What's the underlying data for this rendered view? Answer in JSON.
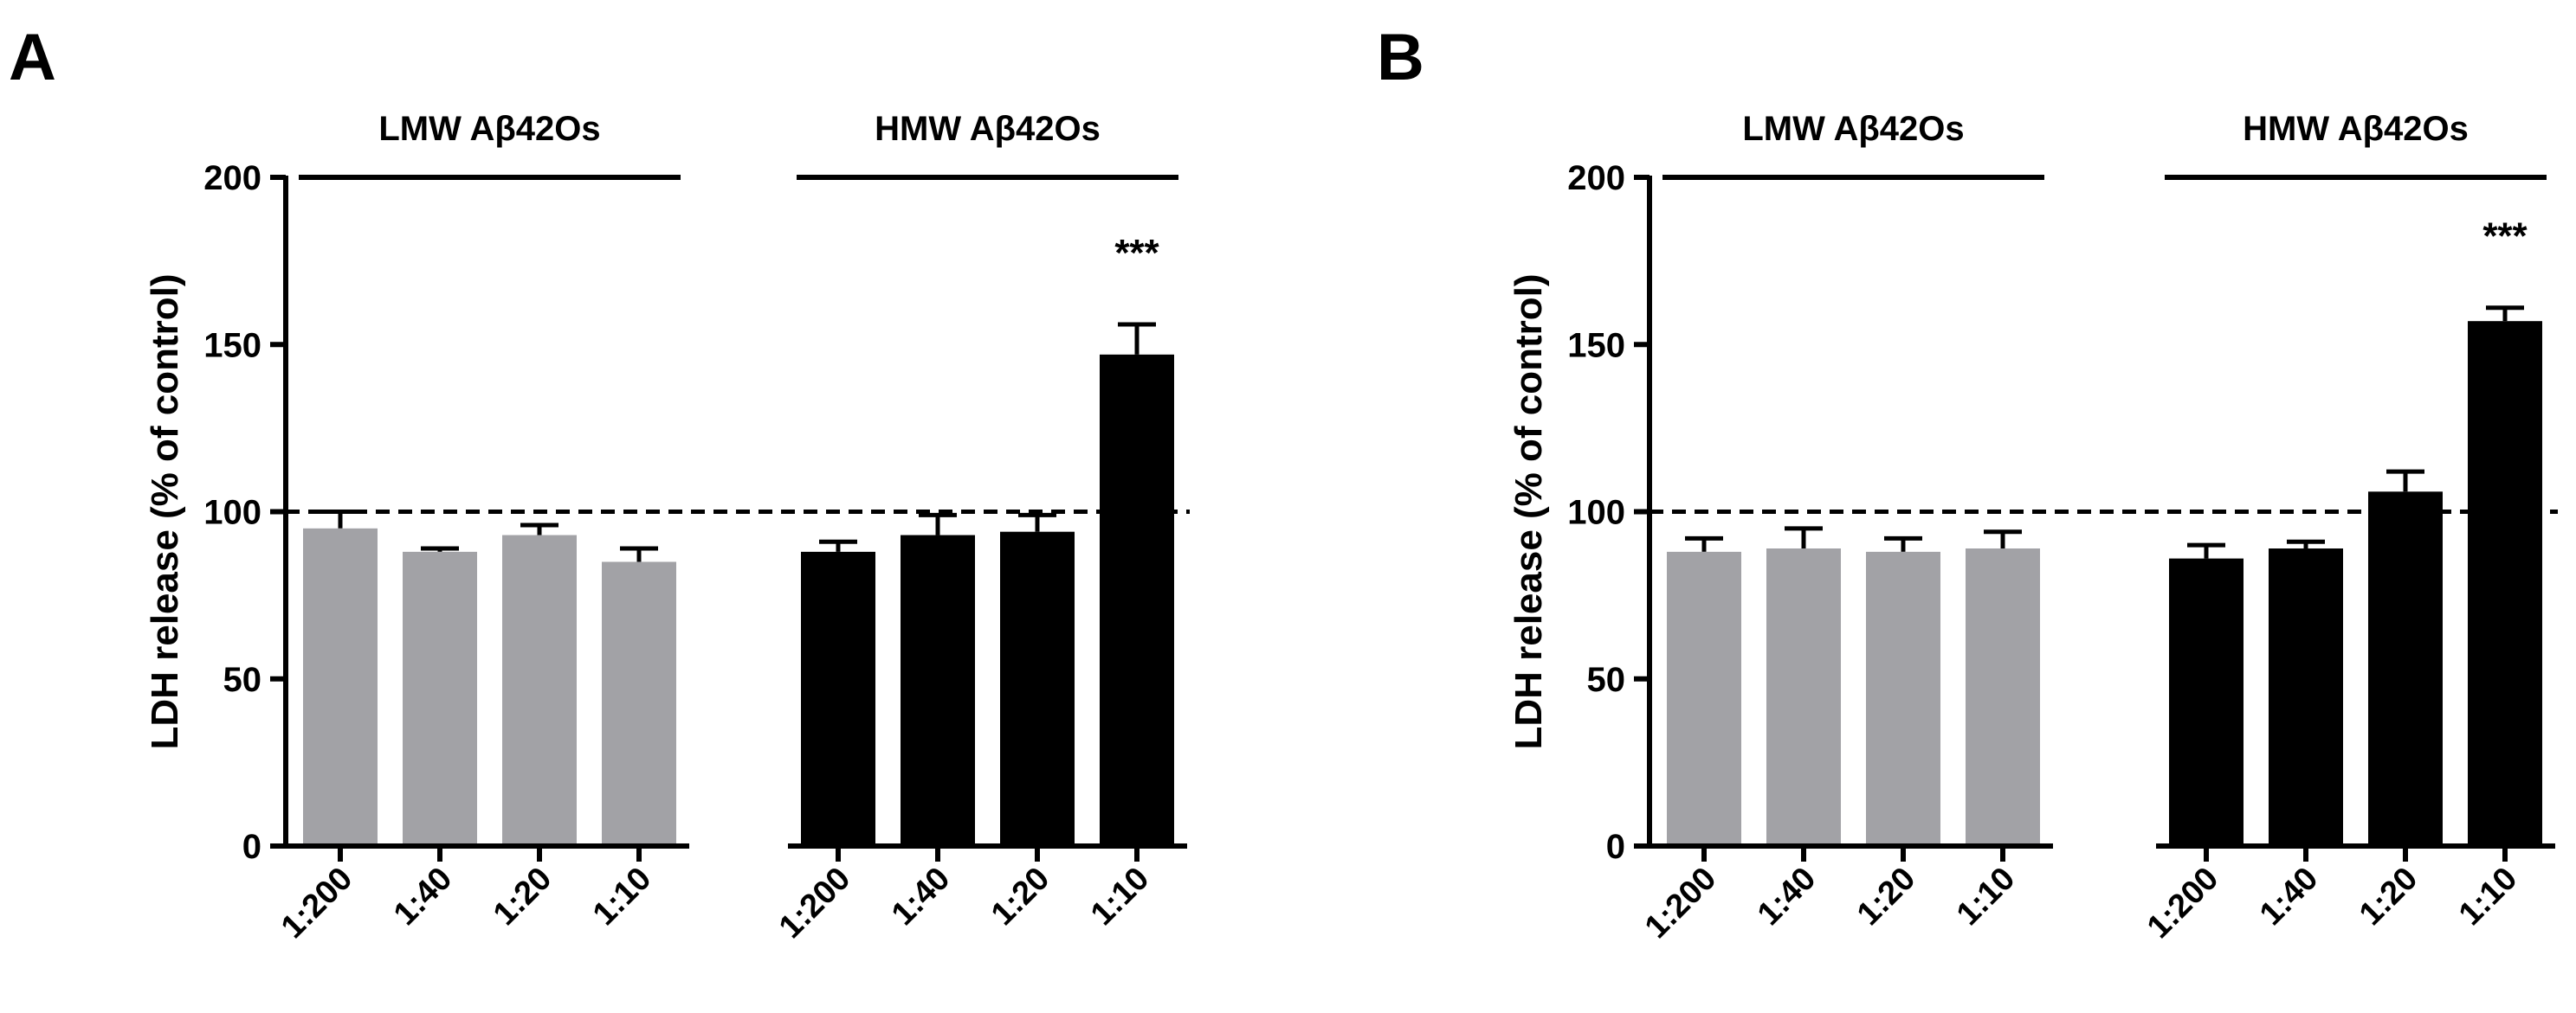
{
  "chart_data": [
    {
      "panel": "A",
      "type": "bar",
      "ylabel": "LDH release (% of control)",
      "ylim": [
        0,
        200
      ],
      "yticks": [
        "0",
        "50",
        "100",
        "150",
        "200"
      ],
      "reference_line": 100,
      "groups": [
        {
          "label": "LMW Aβ42Os",
          "color": "#a2a2a6",
          "categories": [
            "1:200",
            "1:40",
            "1:20",
            "1:10"
          ],
          "values": [
            95,
            88,
            93,
            85
          ],
          "errors": [
            5,
            1,
            3,
            4
          ]
        },
        {
          "label": "HMW Aβ42Os",
          "color": "#000000",
          "categories": [
            "1:200",
            "1:40",
            "1:20",
            "1:10"
          ],
          "values": [
            88,
            93,
            94,
            147
          ],
          "errors": [
            3,
            6,
            5,
            9
          ],
          "significance": [
            "",
            "",
            "",
            "***"
          ]
        }
      ]
    },
    {
      "panel": "B",
      "type": "bar",
      "ylabel": "LDH release (% of control)",
      "ylim": [
        0,
        200
      ],
      "yticks": [
        "0",
        "50",
        "100",
        "150",
        "200"
      ],
      "reference_line": 100,
      "groups": [
        {
          "label": "LMW Aβ42Os",
          "color": "#a2a2a6",
          "categories": [
            "1:200",
            "1:40",
            "1:20",
            "1:10"
          ],
          "values": [
            88,
            89,
            88,
            89
          ],
          "errors": [
            4,
            6,
            4,
            5
          ]
        },
        {
          "label": "HMW Aβ42Os",
          "color": "#000000",
          "categories": [
            "1:200",
            "1:40",
            "1:20",
            "1:10"
          ],
          "values": [
            86,
            89,
            106,
            157
          ],
          "errors": [
            4,
            2,
            6,
            4
          ],
          "significance": [
            "",
            "",
            "",
            "***"
          ]
        }
      ]
    }
  ]
}
